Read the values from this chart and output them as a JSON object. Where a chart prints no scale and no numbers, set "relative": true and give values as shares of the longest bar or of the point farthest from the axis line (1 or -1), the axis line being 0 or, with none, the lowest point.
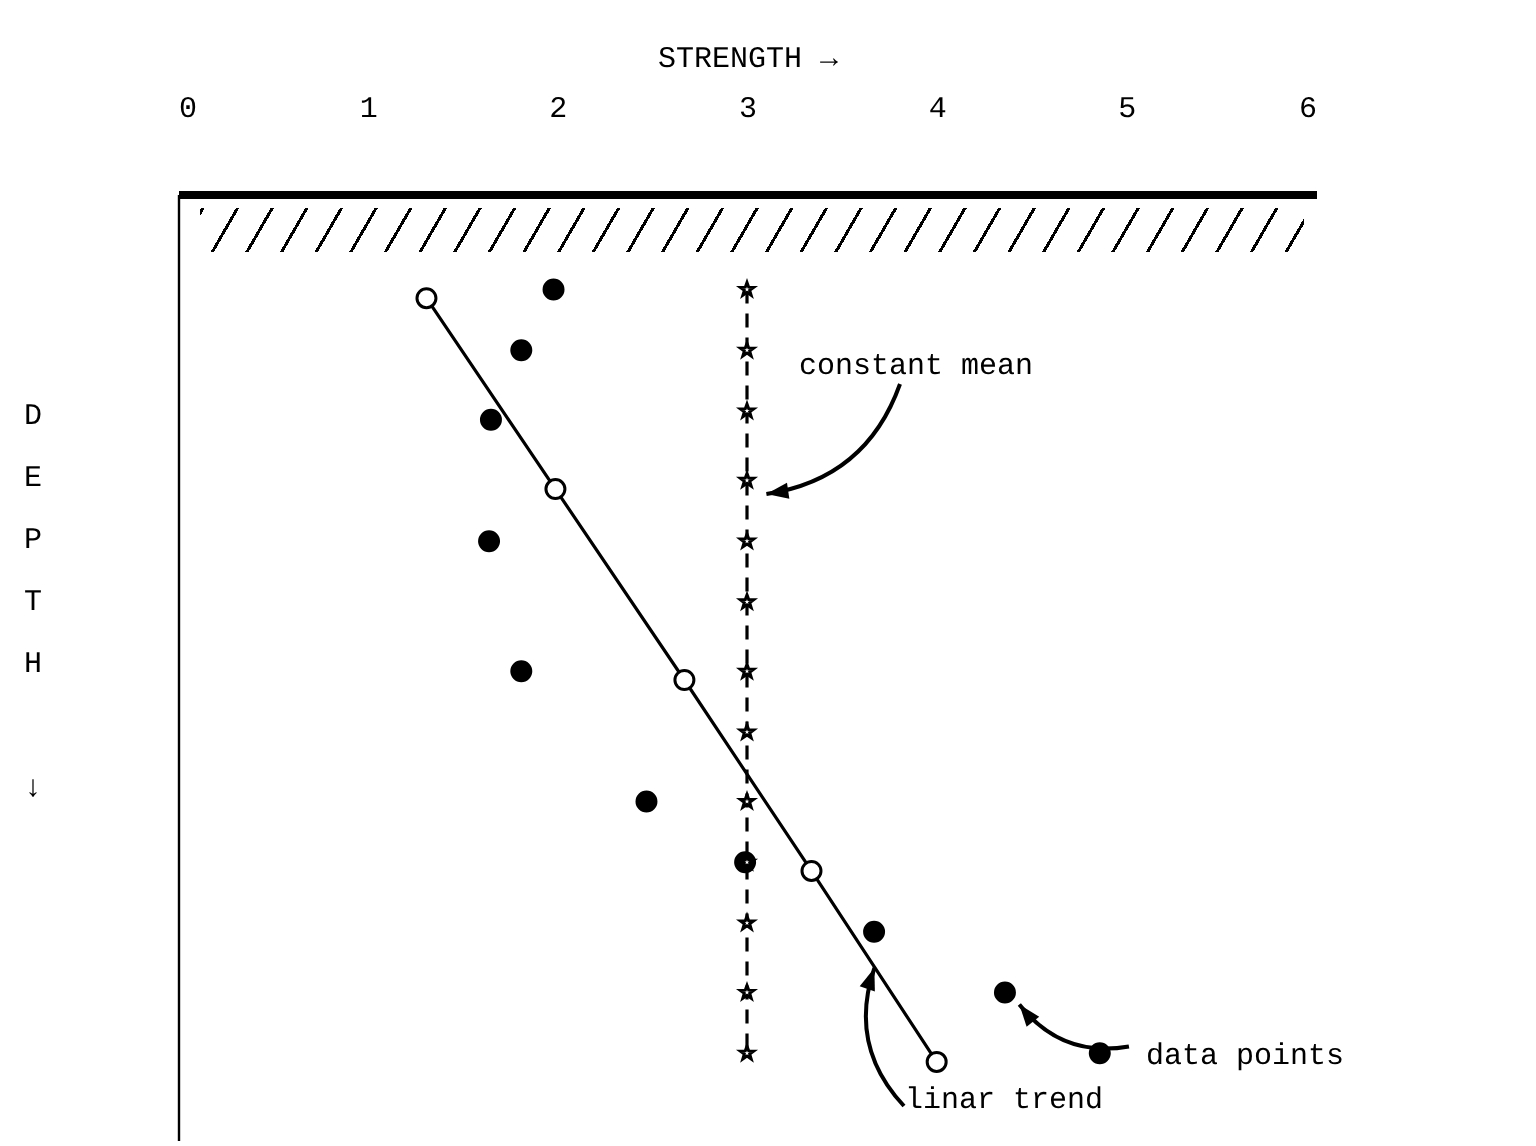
{
  "chart_data": {
    "type": "scatter",
    "xlabel": "STRENGTH →",
    "ylabel": "DEPTH ↓",
    "relative": true,
    "xlim": [
      0,
      6
    ],
    "xticks": [
      0,
      1,
      2,
      3,
      4,
      5,
      6
    ],
    "grid": false,
    "series": [
      {
        "color": "#000000",
        "marker": "circle",
        "x": [
          1.98,
          1.81,
          1.65,
          1.64,
          1.81,
          2.47,
          2.99,
          3.67,
          4.36,
          4.86
        ],
        "values": [
          -0.11,
          -0.18,
          -0.26,
          -0.4,
          -0.55,
          -0.7,
          -0.77,
          -0.85,
          -0.92,
          -0.99
        ]
      },
      {
        "type": "line",
        "color": "#000000",
        "marker": "circle",
        "line_style": "solid",
        "x": [
          1.31,
          1.99,
          2.67,
          3.34,
          4.0
        ],
        "values": [
          -0.12,
          -0.34,
          -0.56,
          -0.78,
          -1
        ]
      },
      {
        "type": "line",
        "color": "#000000",
        "marker": "star",
        "line_style": "dashed",
        "x": [
          3,
          3,
          3,
          3,
          3,
          3,
          3,
          3,
          3,
          3,
          3,
          3,
          3
        ],
        "values": [
          -0.11,
          -0.18,
          -0.25,
          -0.33,
          -0.4,
          -0.47,
          -0.55,
          -0.62,
          -0.7,
          -0.77,
          -0.84,
          -0.92,
          -0.99
        ]
      }
    ],
    "annotations": [
      "constant mean",
      {
        "text": "data points",
        "x": 4.36,
        "y": -0.92
      },
      "linar trend"
    ]
  }
}
